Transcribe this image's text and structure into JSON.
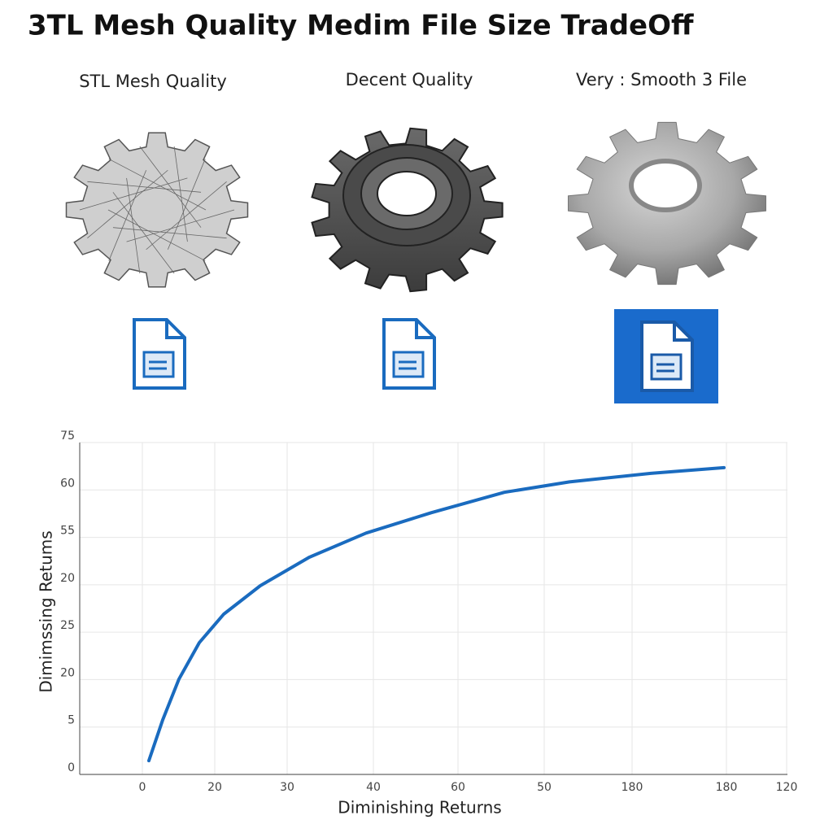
{
  "title": "3TL Mesh Quality Medim File Size TradeOff",
  "panels": [
    {
      "label": "STL Mesh Quality"
    },
    {
      "label": "Decent Quality"
    },
    {
      "label": "Very : Smooth 3 File"
    }
  ],
  "chart_data": {
    "type": "line",
    "xlabel": "Diminishing Returns",
    "ylabel": "Dimimssing Retums",
    "x": [
      0.08,
      0.25,
      0.45,
      0.7,
      1.0,
      1.45,
      2.05,
      2.75,
      3.55,
      4.45,
      5.25,
      6.25,
      7.15
    ],
    "series": [
      {
        "color": "#1a6bbf",
        "values": [
          0.29,
          1.15,
          2.01,
          2.78,
          3.38,
          3.98,
          4.58,
          5.09,
          5.52,
          5.95,
          6.17,
          6.35,
          6.47
        ]
      }
    ],
    "xlim": [
      -0.77,
      7.93
    ],
    "ylim": [
      0,
      7
    ],
    "xticks": [
      {
        "value": 0,
        "label": "0"
      },
      {
        "value": 0.89,
        "label": "20"
      },
      {
        "value": 1.78,
        "label": "30"
      },
      {
        "value": 2.84,
        "label": "40"
      },
      {
        "value": 3.88,
        "label": "60"
      },
      {
        "value": 4.94,
        "label": "50"
      },
      {
        "value": 6.02,
        "label": "180"
      },
      {
        "value": 7.18,
        "label": "180"
      },
      {
        "value": 7.92,
        "label": "120"
      }
    ],
    "yticks": [
      {
        "value": 0,
        "label": "0"
      },
      {
        "value": 1,
        "label": "5"
      },
      {
        "value": 2,
        "label": "20"
      },
      {
        "value": 3,
        "label": "25"
      },
      {
        "value": 4,
        "label": "20"
      },
      {
        "value": 5,
        "label": "55"
      },
      {
        "value": 6,
        "label": "60"
      },
      {
        "value": 7,
        "label": "75"
      }
    ],
    "grid": true
  }
}
